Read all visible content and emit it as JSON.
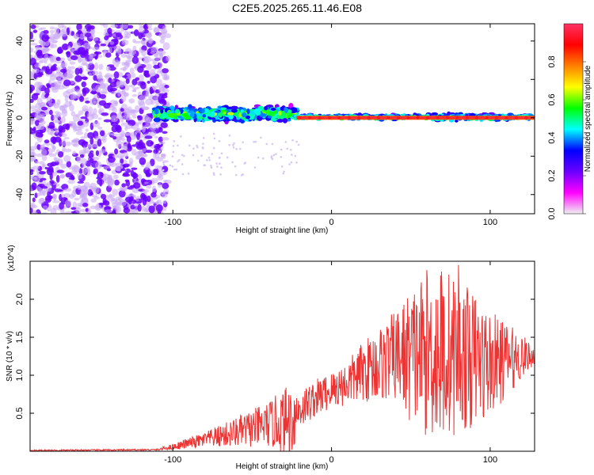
{
  "title": "C2E5.2025.265.11.46.E08",
  "chart_data": [
    {
      "type": "heatmap",
      "name": "spectrogram",
      "xlabel": "Height of straight line (km)",
      "ylabel": "Frequency (Hz)",
      "xlim": [
        -190,
        128
      ],
      "ylim": [
        -50,
        49
      ],
      "xticks": [
        -100,
        0,
        100
      ],
      "yticks": [
        -40,
        -20,
        0,
        20,
        40
      ],
      "colorbar": {
        "label": "Normalized spectral amplitude",
        "range": [
          0,
          1
        ],
        "ticks": [
          0.0,
          0.2,
          0.4,
          0.6,
          0.8
        ],
        "colors": [
          "#f0f0f0",
          "#ff00ff",
          "#6a00ff",
          "#0000ff",
          "#00ffff",
          "#00ff00",
          "#ffff00",
          "#ff8000",
          "#ff0000",
          "#ff3366"
        ]
      },
      "regions": [
        {
          "description": "broadband noise",
          "x": [
            -190,
            -107
          ],
          "freq": [
            -50,
            49
          ],
          "amplitude": 0.15
        },
        {
          "description": "wide signal band",
          "x": [
            -111,
            -22
          ],
          "freq": [
            -6,
            10
          ],
          "amplitude": 0.4
        },
        {
          "description": "narrow carrier",
          "x": [
            -22,
            128
          ],
          "freq": [
            -2,
            2
          ],
          "amplitude": 0.9
        }
      ]
    },
    {
      "type": "line",
      "name": "snr",
      "xlabel": "Height of straight line (km)",
      "ylabel": "SNR (10 * v/v)",
      "y_multiplier": "(x10^4)",
      "xlim": [
        -190,
        128
      ],
      "ylim": [
        0,
        2.5
      ],
      "xticks": [
        -100,
        0,
        100
      ],
      "yticks": [
        0.5,
        1.0,
        1.5,
        2.0
      ],
      "series": [
        {
          "name": "SNR",
          "color": "#ee3333",
          "envelope_x": [
            -190,
            -110,
            -100,
            -80,
            -60,
            -40,
            -25,
            -20,
            -10,
            0,
            10,
            20,
            30,
            40,
            50,
            60,
            70,
            80,
            90,
            100,
            110,
            120,
            128
          ],
          "envelope_mean": [
            0.01,
            0.02,
            0.06,
            0.15,
            0.25,
            0.35,
            0.42,
            0.55,
            0.7,
            0.8,
            0.9,
            1.05,
            1.15,
            1.25,
            1.25,
            1.3,
            1.3,
            1.25,
            1.2,
            1.15,
            1.2,
            1.25,
            1.25
          ],
          "envelope_spread": [
            0.01,
            0.01,
            0.04,
            0.1,
            0.2,
            0.3,
            0.5,
            0.25,
            0.25,
            0.25,
            0.3,
            0.4,
            0.5,
            0.6,
            0.9,
            1.1,
            1.2,
            1.0,
            0.9,
            0.7,
            0.5,
            0.3,
            0.1
          ],
          "peak": {
            "x": 80,
            "y": 2.45
          }
        }
      ]
    }
  ]
}
